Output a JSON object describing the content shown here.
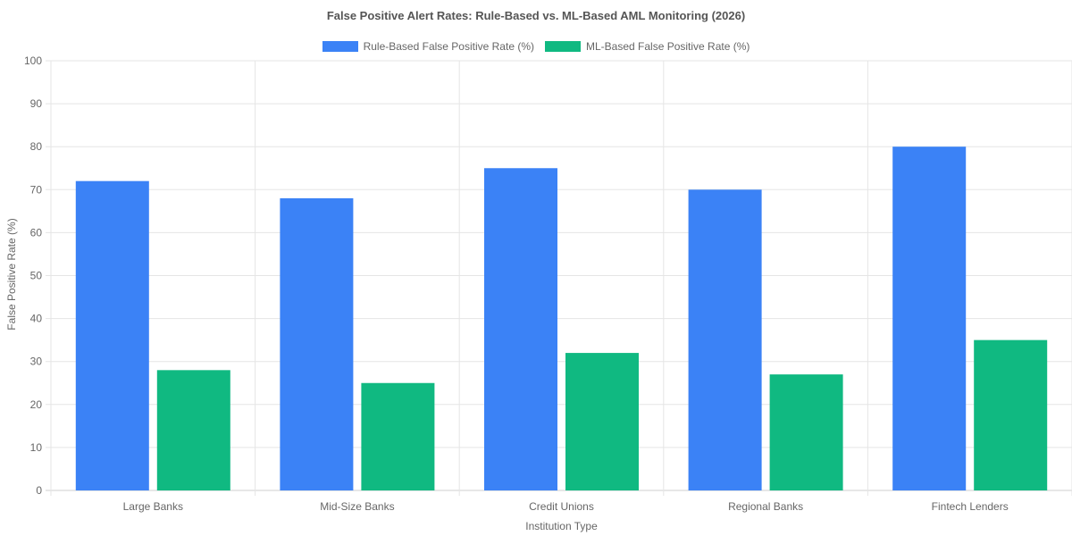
{
  "chart_data": {
    "type": "bar",
    "title": "False Positive Alert Rates: Rule-Based vs. ML-Based AML Monitoring (2026)",
    "xlabel": "Institution Type",
    "ylabel": "False Positive Rate (%)",
    "ylim": [
      0,
      100
    ],
    "yticks": [
      0,
      10,
      20,
      30,
      40,
      50,
      60,
      70,
      80,
      90,
      100
    ],
    "grid": true,
    "legend_position": "top",
    "categories": [
      "Large Banks",
      "Mid-Size Banks",
      "Credit Unions",
      "Regional Banks",
      "Fintech Lenders"
    ],
    "series": [
      {
        "name": "Rule-Based False Positive Rate (%)",
        "color": "#3b82f6",
        "values": [
          72,
          68,
          75,
          70,
          80
        ]
      },
      {
        "name": "ML-Based False Positive Rate (%)",
        "color": "#10b981",
        "values": [
          28,
          25,
          32,
          27,
          35
        ]
      }
    ]
  }
}
